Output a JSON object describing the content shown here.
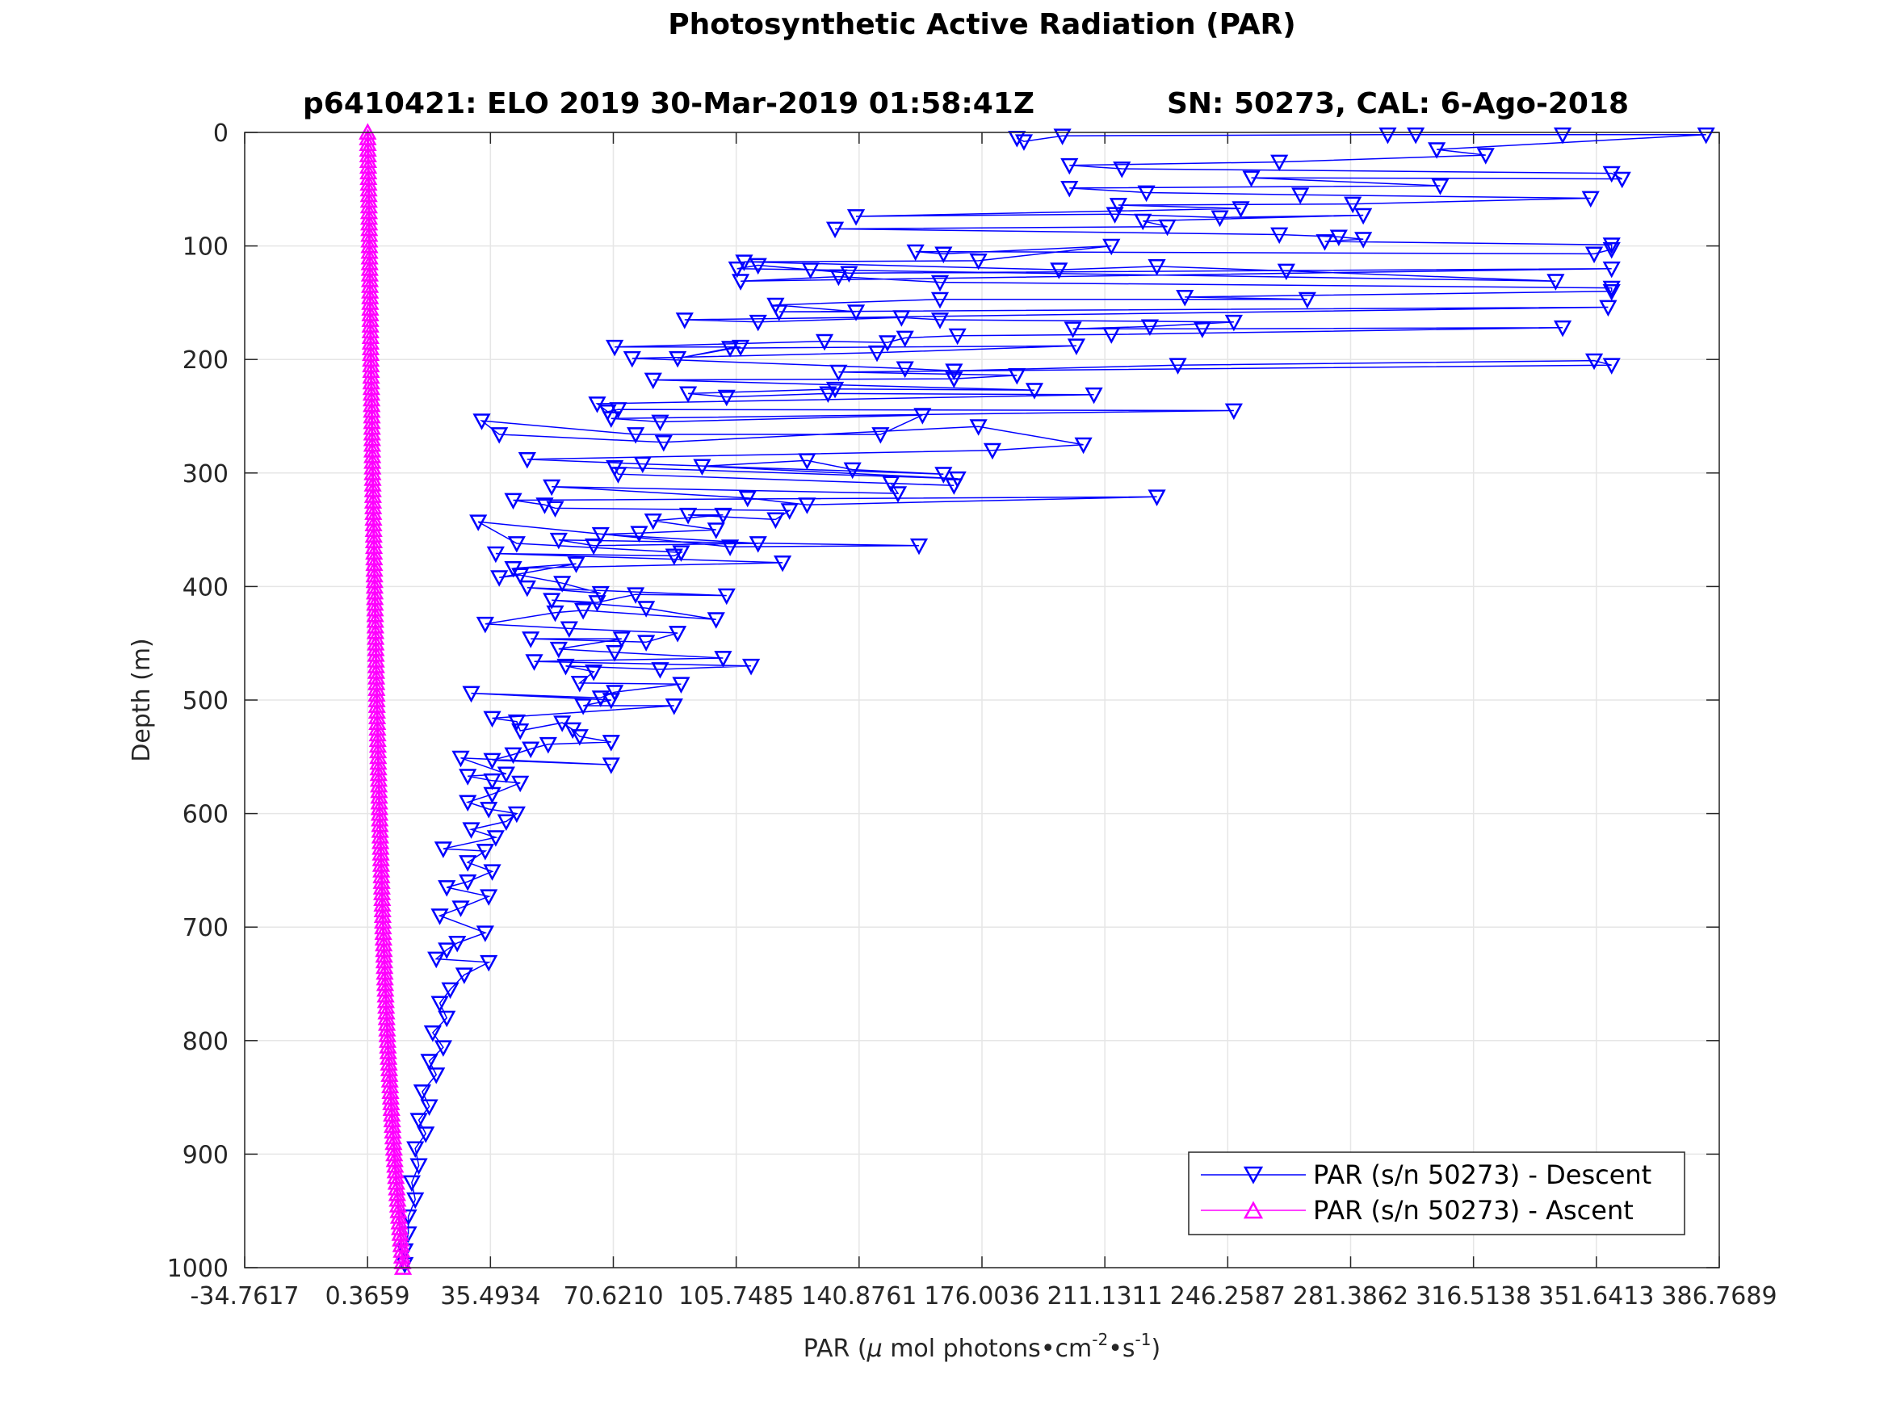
{
  "chart_data": {
    "type": "line",
    "title": "Photosynthetic Active Radiation (PAR)",
    "subtitle_left": "p6410421: ELO 2019 30-Mar-2019 01:58:41Z",
    "subtitle_right": "SN: 50273, CAL: 6-Ago-2018",
    "xlabel": {
      "prefix": "PAR (",
      "mu": "μ",
      "middle": " mol photons",
      "bullet": "•",
      "cm": "cm",
      "exp1": "-2",
      "s": "s",
      "exp2": "-1",
      "suffix": ")"
    },
    "ylabel": "Depth (m)",
    "xlim": [
      -34.7617,
      386.7689
    ],
    "ylim": [
      0,
      1000
    ],
    "y_reversed": true,
    "xticks": [
      "-34.7617",
      "0.3659",
      "35.4934",
      "70.6210",
      "105.7485",
      "140.8761",
      "176.0036",
      "211.1311",
      "246.2587",
      "281.3862",
      "316.5138",
      "351.6413",
      "386.7689"
    ],
    "yticks": [
      "0",
      "100",
      "200",
      "300",
      "400",
      "500",
      "600",
      "700",
      "800",
      "900",
      "1000"
    ],
    "grid": true,
    "legend_position": "bottom-right",
    "series": [
      {
        "name": "PAR (s/n 50273) - Descent",
        "color": "#0000ff",
        "marker": "triangle-down",
        "points": [
          [
            186,
            5
          ],
          [
            188,
            8
          ],
          [
            199,
            3
          ],
          [
            292,
            2
          ],
          [
            300,
            2
          ],
          [
            342,
            2
          ],
          [
            383,
            2
          ],
          [
            306,
            15
          ],
          [
            320,
            20
          ],
          [
            261,
            26
          ],
          [
            201,
            29
          ],
          [
            216,
            32
          ],
          [
            356,
            36
          ],
          [
            359,
            41
          ],
          [
            253,
            40
          ],
          [
            307,
            47
          ],
          [
            201,
            49
          ],
          [
            223,
            53
          ],
          [
            267,
            55
          ],
          [
            350,
            58
          ],
          [
            282,
            63
          ],
          [
            215,
            64
          ],
          [
            250,
            67
          ],
          [
            140,
            74
          ],
          [
            214,
            72
          ],
          [
            244,
            75
          ],
          [
            285,
            73
          ],
          [
            222,
            78
          ],
          [
            229,
            83
          ],
          [
            134,
            85
          ],
          [
            261,
            90
          ],
          [
            278,
            92
          ],
          [
            285,
            94
          ],
          [
            274,
            96
          ],
          [
            356,
            99
          ],
          [
            356,
            103
          ],
          [
            351,
            107
          ],
          [
            157,
            105
          ],
          [
            165,
            107
          ],
          [
            213,
            100
          ],
          [
            175,
            113
          ],
          [
            108,
            114
          ],
          [
            198,
            121
          ],
          [
            226,
            118
          ],
          [
            263,
            122
          ],
          [
            340,
            131
          ],
          [
            106,
            120
          ],
          [
            112,
            117
          ],
          [
            127,
            121
          ],
          [
            138,
            124
          ],
          [
            356,
            120
          ],
          [
            107,
            131
          ],
          [
            135,
            127
          ],
          [
            164,
            132
          ],
          [
            356,
            137
          ],
          [
            356,
            140
          ],
          [
            234,
            145
          ],
          [
            269,
            147
          ],
          [
            164,
            147
          ],
          [
            117,
            152
          ],
          [
            140,
            158
          ],
          [
            118,
            158
          ],
          [
            355,
            154
          ],
          [
            91,
            165
          ],
          [
            112,
            167
          ],
          [
            153,
            163
          ],
          [
            164,
            165
          ],
          [
            248,
            167
          ],
          [
            224,
            171
          ],
          [
            202,
            173
          ],
          [
            239,
            173
          ],
          [
            342,
            172
          ],
          [
            213,
            178
          ],
          [
            169,
            179
          ],
          [
            154,
            181
          ],
          [
            149,
            185
          ],
          [
            131,
            184
          ],
          [
            71,
            189
          ],
          [
            107,
            189
          ],
          [
            89,
            199
          ],
          [
            104,
            190
          ],
          [
            203,
            188
          ],
          [
            146,
            194
          ],
          [
            76,
            199
          ],
          [
            154,
            208
          ],
          [
            168,
            210
          ],
          [
            232,
            205
          ],
          [
            351,
            201
          ],
          [
            356,
            205
          ],
          [
            135,
            211
          ],
          [
            186,
            214
          ],
          [
            168,
            217
          ],
          [
            82,
            218
          ],
          [
            191,
            227
          ],
          [
            134,
            226
          ],
          [
            92,
            230
          ],
          [
            103,
            233
          ],
          [
            132,
            230
          ],
          [
            208,
            231
          ],
          [
            66,
            239
          ],
          [
            69,
            246
          ],
          [
            72,
            244
          ],
          [
            248,
            245
          ],
          [
            70,
            252
          ],
          [
            84,
            255
          ],
          [
            159,
            249
          ],
          [
            147,
            266
          ],
          [
            77,
            266
          ],
          [
            33,
            254
          ],
          [
            38,
            266
          ],
          [
            85,
            273
          ],
          [
            175,
            259
          ],
          [
            205,
            275
          ],
          [
            179,
            280
          ],
          [
            46,
            288
          ],
          [
            79,
            292
          ],
          [
            165,
            301
          ],
          [
            139,
            297
          ],
          [
            126,
            289
          ],
          [
            96,
            294
          ],
          [
            169,
            305
          ],
          [
            71,
            295
          ],
          [
            72,
            301
          ],
          [
            168,
            311
          ],
          [
            150,
            309
          ],
          [
            152,
            318
          ],
          [
            53,
            312
          ],
          [
            109,
            322
          ],
          [
            126,
            328
          ],
          [
            226,
            321
          ],
          [
            42,
            324
          ],
          [
            51,
            328
          ],
          [
            54,
            331
          ],
          [
            121,
            333
          ],
          [
            117,
            341
          ],
          [
            92,
            337
          ],
          [
            102,
            337
          ],
          [
            82,
            342
          ],
          [
            100,
            350
          ],
          [
            78,
            353
          ],
          [
            67,
            354
          ],
          [
            112,
            362
          ],
          [
            65,
            364
          ],
          [
            55,
            359
          ],
          [
            158,
            364
          ],
          [
            104,
            365
          ],
          [
            32,
            343
          ],
          [
            43,
            362
          ],
          [
            90,
            370
          ],
          [
            88,
            373
          ],
          [
            37,
            371
          ],
          [
            119,
            379
          ],
          [
            42,
            384
          ],
          [
            60,
            380
          ],
          [
            38,
            392
          ],
          [
            44,
            390
          ],
          [
            56,
            397
          ],
          [
            67,
            406
          ],
          [
            46,
            401
          ],
          [
            103,
            408
          ],
          [
            77,
            407
          ],
          [
            66,
            414
          ],
          [
            53,
            412
          ],
          [
            80,
            419
          ],
          [
            100,
            429
          ],
          [
            62,
            421
          ],
          [
            54,
            423
          ],
          [
            34,
            433
          ],
          [
            58,
            437
          ],
          [
            89,
            441
          ],
          [
            80,
            449
          ],
          [
            47,
            446
          ],
          [
            73,
            446
          ],
          [
            55,
            455
          ],
          [
            71,
            458
          ],
          [
            102,
            463
          ],
          [
            48,
            466
          ],
          [
            110,
            470
          ],
          [
            84,
            473
          ],
          [
            57,
            470
          ],
          [
            65,
            475
          ],
          [
            61,
            485
          ],
          [
            90,
            486
          ],
          [
            71,
            493
          ],
          [
            67,
            498
          ],
          [
            30,
            494
          ],
          [
            70,
            500
          ],
          [
            62,
            505
          ],
          [
            88,
            505
          ],
          [
            36,
            516
          ],
          [
            43,
            519
          ],
          [
            44,
            527
          ],
          [
            56,
            520
          ],
          [
            59,
            526
          ],
          [
            61,
            532
          ],
          [
            70,
            537
          ],
          [
            52,
            539
          ],
          [
            47,
            543
          ],
          [
            42,
            548
          ],
          [
            36,
            553
          ],
          [
            70,
            557
          ],
          [
            27,
            551
          ],
          [
            40,
            565
          ],
          [
            29,
            567
          ],
          [
            36,
            571
          ],
          [
            44,
            573
          ],
          [
            36,
            583
          ],
          [
            29,
            590
          ],
          [
            35,
            596
          ],
          [
            43,
            600
          ],
          [
            40,
            607
          ],
          [
            30,
            614
          ],
          [
            37,
            621
          ],
          [
            22,
            631
          ],
          [
            34,
            633
          ],
          [
            29,
            643
          ],
          [
            36,
            651
          ],
          [
            29,
            660
          ],
          [
            23,
            665
          ],
          [
            35,
            673
          ],
          [
            27,
            683
          ],
          [
            21,
            690
          ],
          [
            34,
            705
          ],
          [
            26,
            714
          ],
          [
            23,
            720
          ],
          [
            20,
            728
          ],
          [
            35,
            731
          ],
          [
            28,
            742
          ],
          [
            24,
            755
          ],
          [
            21,
            767
          ],
          [
            23,
            780
          ],
          [
            19,
            793
          ],
          [
            22,
            806
          ],
          [
            18,
            818
          ],
          [
            20,
            830
          ],
          [
            16,
            845
          ],
          [
            18,
            858
          ],
          [
            15,
            870
          ],
          [
            17,
            882
          ],
          [
            14,
            895
          ],
          [
            15,
            910
          ],
          [
            13,
            925
          ],
          [
            14,
            940
          ],
          [
            12,
            955
          ],
          [
            12,
            970
          ],
          [
            11,
            985
          ],
          [
            11,
            997
          ]
        ]
      },
      {
        "name": "PAR (s/n 50273) - Ascent",
        "color": "#ff00ff",
        "marker": "triangle-up",
        "points": [
          [
            0.4,
            0
          ],
          [
            0.7,
            50
          ],
          [
            0.9,
            100
          ],
          [
            1.1,
            150
          ],
          [
            1.3,
            200
          ],
          [
            1.6,
            250
          ],
          [
            1.8,
            300
          ],
          [
            2.1,
            350
          ],
          [
            2.4,
            400
          ],
          [
            2.7,
            450
          ],
          [
            3.0,
            500
          ],
          [
            3.4,
            550
          ],
          [
            3.8,
            600
          ],
          [
            4.3,
            650
          ],
          [
            4.8,
            700
          ],
          [
            5.4,
            750
          ],
          [
            6.1,
            800
          ],
          [
            7.0,
            850
          ],
          [
            8.0,
            900
          ],
          [
            9.2,
            950
          ],
          [
            10.5,
            1000
          ]
        ]
      }
    ]
  }
}
